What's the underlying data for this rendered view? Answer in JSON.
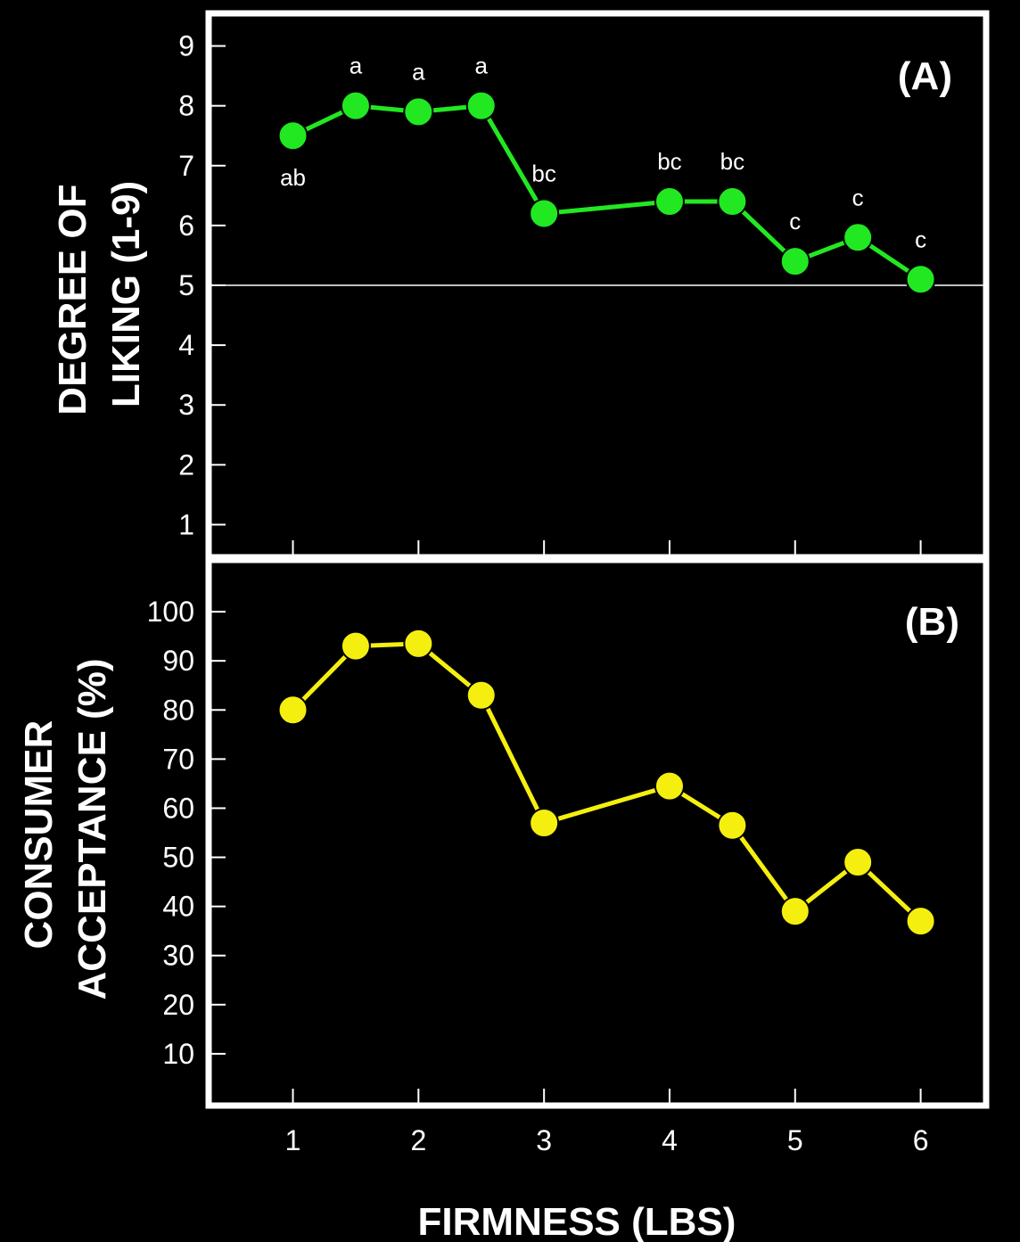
{
  "colors": {
    "background": "#000000",
    "frame": "#ffffff",
    "series_a": "#22e822",
    "series_b": "#f5ef10",
    "reference_line": "#ffffff"
  },
  "chart_data": [
    {
      "type": "line",
      "panel_label": "(A)",
      "ylabel_line1": "DEGREE OF",
      "ylabel_line2": "LIKING (1-9)",
      "xlabel": "",
      "ylim": [
        0.5,
        9.5
      ],
      "yticks": [
        1,
        2,
        3,
        4,
        5,
        6,
        7,
        8,
        9
      ],
      "xlim": [
        0.35,
        6.5
      ],
      "reference_line_y": 5,
      "x": [
        1,
        1.5,
        2,
        2.5,
        3,
        4,
        4.5,
        5,
        5.5,
        6
      ],
      "series": [
        {
          "values": [
            7.5,
            8.0,
            7.9,
            8.0,
            6.2,
            6.4,
            6.4,
            5.4,
            5.8,
            5.1
          ]
        }
      ],
      "annotations": [
        {
          "x": 1,
          "text": "ab",
          "position": "below"
        },
        {
          "x": 1.5,
          "text": "a",
          "position": "above"
        },
        {
          "x": 2,
          "text": "a",
          "position": "above"
        },
        {
          "x": 2.5,
          "text": "a",
          "position": "above"
        },
        {
          "x": 3,
          "text": "bc",
          "position": "above"
        },
        {
          "x": 4,
          "text": "bc",
          "position": "above"
        },
        {
          "x": 4.5,
          "text": "bc",
          "position": "above"
        },
        {
          "x": 5,
          "text": "c",
          "position": "above"
        },
        {
          "x": 5.5,
          "text": "c",
          "position": "above"
        },
        {
          "x": 6,
          "text": "c",
          "position": "above"
        }
      ]
    },
    {
      "type": "line",
      "panel_label": "(B)",
      "ylabel_line1": "CONSUMER",
      "ylabel_line2": "ACCEPTANCE (%)",
      "xlabel": "FIRMNESS (LBS)",
      "ylim": [
        0,
        110
      ],
      "yticks": [
        10,
        20,
        30,
        40,
        50,
        60,
        70,
        80,
        90,
        100
      ],
      "xlim": [
        0.35,
        6.5
      ],
      "xticks": [
        1,
        2,
        3,
        4,
        5,
        6
      ],
      "x": [
        1,
        1.5,
        2,
        2.5,
        3,
        4,
        4.5,
        5,
        5.5,
        6
      ],
      "series": [
        {
          "values": [
            80,
            93,
            93.5,
            83,
            57,
            64.5,
            56.5,
            39,
            49,
            37
          ]
        }
      ]
    }
  ]
}
